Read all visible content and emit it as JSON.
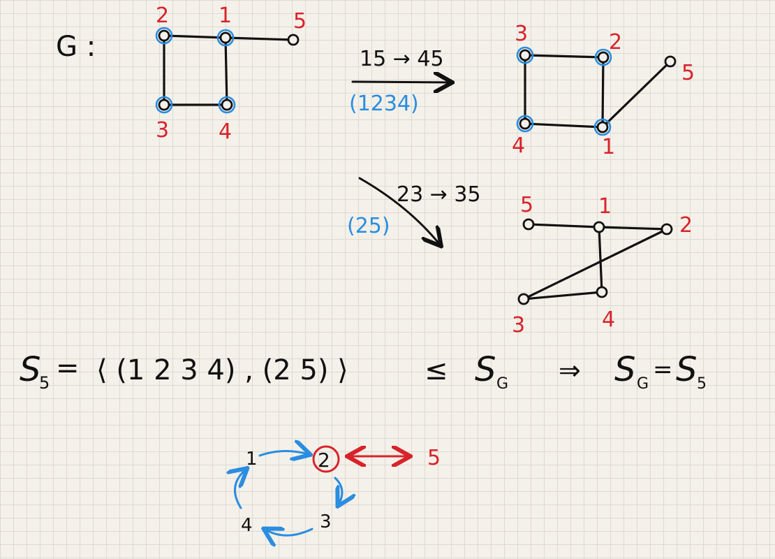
{
  "colors": {
    "ink": "#111111",
    "red": "#d8232a",
    "blue": "#2a8de0",
    "paper": "#f4f1ea"
  },
  "graph_g": {
    "name": "G :",
    "labels": [
      "2",
      "1",
      "5",
      "3",
      "4"
    ]
  },
  "arrow1": {
    "edge_map": "15 → 45",
    "perm": "(1234)"
  },
  "graph_b": {
    "labels": [
      "3",
      "2",
      "5",
      "4",
      "1"
    ]
  },
  "arrow2": {
    "edge_map": "23 → 35",
    "perm": "(25)"
  },
  "graph_c": {
    "labels": [
      "5",
      "1",
      "2",
      "3",
      "4"
    ]
  },
  "equation": {
    "lhs": "S",
    "lhs_sub": "5",
    "eq": "=",
    "gen": "⟨ (1 2 3 4) , (2 5) ⟩",
    "leq": "≤",
    "sg": "S",
    "sg_sub": "G",
    "implies": "⇒",
    "rhs_s": "S",
    "rhs_sub": "G",
    "rhs_eq": "=",
    "rhs_s5": "S",
    "rhs_s5_sub": "5"
  },
  "cycle": {
    "labels": [
      "1",
      "2",
      "3",
      "4",
      "5"
    ]
  }
}
